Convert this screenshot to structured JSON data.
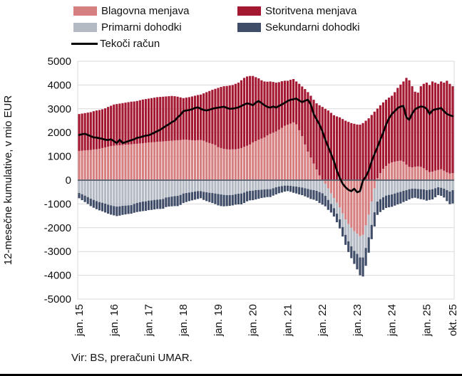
{
  "legend": {
    "blagovna": "Blagovna menjava",
    "storitvena": "Storitvena menjava",
    "primarni": "Primarni dohodki",
    "sekundarni": "Sekundarni dohodki",
    "tekoci": "Tekoči račun"
  },
  "source": "Vir: BS, preračuni UMAR.",
  "colors": {
    "blagovna": "#D67F81",
    "storitvena": "#A41832",
    "primarni": "#B4BAC3",
    "sekundarni": "#404D69",
    "line": "#000000",
    "gridline": "#D9D9D9",
    "zeroline": "#57606E",
    "text": "#111111"
  },
  "chart_data": {
    "type": "stacked_bar_line",
    "title": "",
    "ylabel": "12-mesečne kumulative, v mio EUR",
    "ylim": [
      -5000,
      5000
    ],
    "y_tick_step": 1000,
    "y_tick_labels": [
      "5000",
      "4000",
      "3000",
      "2000",
      "1000",
      "0",
      "-1000",
      "-2000",
      "-3000",
      "-4000",
      "-5000"
    ],
    "x_start_month": "2015-01",
    "x_end_month": "2025-10",
    "x_tick_labels": [
      "jan. 15",
      "jan. 16",
      "jan. 17",
      "jan. 18",
      "jan. 19",
      "jan. 20",
      "jan. 21",
      "jan. 22",
      "jan. 23",
      "jan. 24",
      "jan. 25",
      "okt. 25"
    ],
    "x_tick_month_indices": [
      0,
      12,
      24,
      36,
      48,
      60,
      72,
      84,
      96,
      108,
      120,
      129
    ],
    "grid": "horizontal",
    "legend_position": "top",
    "series": [
      {
        "name": "Blagovna menjava",
        "kind": "bar",
        "values": [
          1230,
          1240,
          1250,
          1260,
          1270,
          1290,
          1300,
          1320,
          1350,
          1380,
          1410,
          1430,
          1450,
          1460,
          1470,
          1480,
          1490,
          1500,
          1510,
          1520,
          1530,
          1545,
          1555,
          1570,
          1580,
          1590,
          1600,
          1610,
          1620,
          1630,
          1640,
          1650,
          1660,
          1670,
          1680,
          1690,
          1700,
          1700,
          1690,
          1680,
          1670,
          1680,
          1690,
          1660,
          1600,
          1560,
          1520,
          1480,
          1390,
          1350,
          1310,
          1300,
          1290,
          1295,
          1300,
          1320,
          1350,
          1400,
          1450,
          1500,
          1590,
          1640,
          1700,
          1750,
          1800,
          1880,
          1950,
          2000,
          2050,
          2120,
          2200,
          2290,
          2330,
          2380,
          2430,
          2350,
          2100,
          1850,
          1500,
          1200,
          950,
          700,
          450,
          200,
          30,
          -150,
          -350,
          -550,
          -750,
          -950,
          -1150,
          -1400,
          -1650,
          -1850,
          -2000,
          -2150,
          -2250,
          -2350,
          -2300,
          -1900,
          -1450,
          -900,
          -350,
          80,
          300,
          480,
          600,
          700,
          750,
          780,
          800,
          820,
          780,
          650,
          560,
          540,
          560,
          580,
          560,
          500,
          420,
          340,
          360,
          400,
          430,
          460,
          400,
          330,
          280,
          300
        ]
      },
      {
        "name": "Storitvena menjava",
        "kind": "bar",
        "values": [
          1550,
          1560,
          1570,
          1580,
          1590,
          1610,
          1630,
          1630,
          1630,
          1640,
          1670,
          1700,
          1730,
          1740,
          1750,
          1760,
          1770,
          1780,
          1790,
          1790,
          1800,
          1815,
          1835,
          1840,
          1850,
          1860,
          1870,
          1880,
          1880,
          1880,
          1880,
          1880,
          1880,
          1860,
          1830,
          1790,
          1750,
          1770,
          1800,
          1840,
          1880,
          1900,
          1910,
          1990,
          2100,
          2190,
          2280,
          2360,
          2490,
          2570,
          2640,
          2660,
          2690,
          2705,
          2750,
          2780,
          2850,
          2900,
          2910,
          2880,
          2790,
          2690,
          2580,
          2450,
          2350,
          2260,
          2200,
          2130,
          2050,
          2000,
          1960,
          1890,
          1850,
          1840,
          1820,
          1800,
          1950,
          2090,
          2330,
          2500,
          2600,
          2680,
          2780,
          2950,
          3050,
          3000,
          2930,
          2830,
          2730,
          2680,
          2640,
          2570,
          2500,
          2450,
          2400,
          2370,
          2340,
          2335,
          2400,
          2500,
          2600,
          2740,
          2880,
          2930,
          2850,
          2790,
          2780,
          2770,
          2800,
          2920,
          3080,
          3200,
          3370,
          3650,
          3640,
          3410,
          3160,
          3100,
          3390,
          3550,
          3680,
          3660,
          3790,
          3700,
          3620,
          3690,
          3700,
          3850,
          3770,
          3650
        ]
      },
      {
        "name": "Primarni dohodki",
        "kind": "bar",
        "values": [
          -540,
          -590,
          -650,
          -710,
          -780,
          -830,
          -880,
          -920,
          -950,
          -990,
          -1030,
          -1060,
          -1090,
          -1110,
          -1100,
          -1080,
          -1070,
          -1060,
          -1050,
          -1000,
          -960,
          -930,
          -900,
          -890,
          -860,
          -850,
          -830,
          -820,
          -810,
          -790,
          -730,
          -710,
          -690,
          -670,
          -660,
          -620,
          -560,
          -540,
          -520,
          -500,
          -480,
          -460,
          -460,
          -490,
          -510,
          -530,
          -540,
          -560,
          -580,
          -600,
          -620,
          -630,
          -630,
          -620,
          -590,
          -570,
          -560,
          -520,
          -470,
          -450,
          -440,
          -420,
          -410,
          -400,
          -390,
          -380,
          -380,
          -340,
          -300,
          -270,
          -250,
          -230,
          -230,
          -240,
          -260,
          -270,
          -290,
          -310,
          -340,
          -370,
          -400,
          -420,
          -450,
          -500,
          -550,
          -510,
          -480,
          -450,
          -430,
          -460,
          -500,
          -570,
          -650,
          -720,
          -780,
          -820,
          -850,
          -900,
          -950,
          -950,
          -950,
          -980,
          -1000,
          -900,
          -800,
          -720,
          -650,
          -620,
          -600,
          -560,
          -520,
          -490,
          -450,
          -420,
          -380,
          -360,
          -360,
          -370,
          -380,
          -390,
          -420,
          -400,
          -380,
          -340,
          -300,
          -320,
          -360,
          -420,
          -480,
          -420
        ]
      },
      {
        "name": "Sekundarni dohodki",
        "kind": "bar",
        "values": [
          -220,
          -250,
          -270,
          -290,
          -310,
          -330,
          -340,
          -350,
          -360,
          -370,
          -380,
          -390,
          -390,
          -400,
          -390,
          -380,
          -370,
          -360,
          -360,
          -370,
          -380,
          -390,
          -400,
          -400,
          -400,
          -400,
          -400,
          -390,
          -400,
          -410,
          -400,
          -400,
          -410,
          -420,
          -430,
          -420,
          -400,
          -380,
          -360,
          -350,
          -340,
          -330,
          -300,
          -340,
          -370,
          -390,
          -420,
          -450,
          -480,
          -490,
          -480,
          -460,
          -450,
          -440,
          -440,
          -450,
          -460,
          -440,
          -420,
          -400,
          -400,
          -390,
          -370,
          -350,
          -340,
          -330,
          -330,
          -310,
          -300,
          -280,
          -270,
          -250,
          -230,
          -250,
          -270,
          -290,
          -310,
          -320,
          -340,
          -360,
          -390,
          -400,
          -420,
          -460,
          -480,
          -440,
          -420,
          -360,
          -350,
          -360,
          -380,
          -400,
          -420,
          -450,
          -500,
          -550,
          -650,
          -750,
          -800,
          -750,
          -650,
          -600,
          -600,
          -560,
          -540,
          -530,
          -520,
          -520,
          -520,
          -510,
          -500,
          -490,
          -470,
          -450,
          -430,
          -400,
          -380,
          -400,
          -420,
          -430,
          -440,
          -430,
          -430,
          -380,
          -330,
          -340,
          -370,
          -460,
          -530,
          -560
        ]
      },
      {
        "name": "Tekoči račun",
        "kind": "line",
        "values": [
          1900,
          1930,
          1950,
          1900,
          1850,
          1800,
          1790,
          1760,
          1740,
          1700,
          1690,
          1720,
          1640,
          1560,
          1700,
          1560,
          1600,
          1640,
          1680,
          1720,
          1780,
          1800,
          1840,
          1870,
          1890,
          1940,
          2000,
          2060,
          2120,
          2200,
          2280,
          2350,
          2440,
          2500,
          2640,
          2750,
          2900,
          2930,
          2950,
          2980,
          3040,
          3060,
          3000,
          2950,
          2930,
          2960,
          3000,
          3030,
          3050,
          3070,
          3090,
          3040,
          3000,
          3010,
          3030,
          3060,
          3120,
          3180,
          3230,
          3200,
          3150,
          3260,
          3330,
          3240,
          3150,
          3080,
          3050,
          3100,
          3050,
          3120,
          3180,
          3250,
          3330,
          3380,
          3400,
          3430,
          3350,
          3280,
          3340,
          3380,
          3180,
          2780,
          2550,
          2340,
          2050,
          1700,
          1400,
          1100,
          800,
          400,
          100,
          -150,
          -300,
          -410,
          -460,
          -360,
          -510,
          -460,
          -10,
          150,
          400,
          790,
          1100,
          1390,
          1700,
          2000,
          2340,
          2600,
          2780,
          2900,
          3030,
          3100,
          3120,
          2640,
          2540,
          2800,
          2980,
          3050,
          3100,
          3080,
          3000,
          2780,
          2930,
          2980,
          3000,
          3030,
          2900,
          2780,
          2730,
          2690
        ]
      }
    ]
  }
}
